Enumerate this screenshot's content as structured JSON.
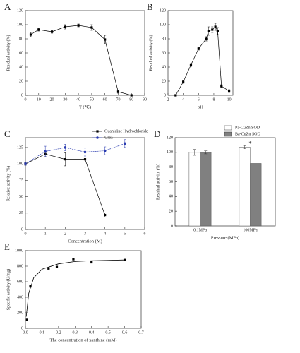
{
  "chart_data": [
    {
      "type": "line",
      "label": "A",
      "xlabel": "T (℃)",
      "ylabel": "Residual activity (%)",
      "x": [
        4,
        10,
        20,
        30,
        40,
        50,
        60,
        70,
        80
      ],
      "series": [
        {
          "color": "#000000",
          "marker": "square",
          "values": [
            86,
            93,
            90,
            97,
            99,
            96,
            79,
            5,
            0
          ],
          "errors": [
            3,
            2,
            2,
            3,
            2,
            4,
            6,
            2,
            0
          ]
        }
      ],
      "xlim": [
        0,
        90
      ],
      "xticks": [
        0,
        10,
        20,
        30,
        40,
        50,
        60,
        70,
        80,
        90
      ],
      "ylim": [
        0,
        120
      ],
      "yticks": [
        0,
        20,
        40,
        60,
        80,
        100,
        120
      ]
    },
    {
      "type": "line",
      "label": "B",
      "xlabel": "pH",
      "ylabel": "Residual activity (%)",
      "x": [
        3,
        4,
        5,
        6,
        7,
        7.3,
        7.8,
        8.2,
        8.5,
        9,
        10
      ],
      "series": [
        {
          "color": "#000000",
          "marker": "square",
          "values": [
            0,
            19,
            43,
            66,
            80,
            91,
            93,
            97,
            91,
            13,
            6
          ],
          "errors": [
            0,
            2,
            2,
            2,
            3,
            6,
            4,
            5,
            5,
            2,
            2
          ]
        }
      ],
      "xlim": [
        2,
        10.5
      ],
      "xticks": [
        2,
        4,
        6,
        8,
        10
      ],
      "ylim": [
        0,
        120
      ],
      "yticks": [
        0,
        20,
        40,
        60,
        80,
        100,
        120
      ]
    },
    {
      "type": "line",
      "label": "C",
      "xlabel": "Concentration (M)",
      "ylabel": "Relative activity (%)",
      "x": [
        0,
        1,
        2,
        3,
        4,
        5
      ],
      "series": [
        {
          "name": "Guanidine Hydrochloride",
          "color": "#000000",
          "marker": "square",
          "values": [
            100,
            115,
            107,
            107,
            22,
            null
          ],
          "errors": [
            2,
            4,
            10,
            12,
            3,
            null
          ]
        },
        {
          "name": "Urea",
          "color": "#2a3cb0",
          "marker": "circle",
          "values": [
            100,
            119,
            125,
            118,
            120,
            131
          ],
          "errors": [
            2,
            8,
            5,
            6,
            6,
            6
          ]
        }
      ],
      "legend": "upper-right",
      "xlim": [
        0,
        6
      ],
      "xticks": [
        0,
        1,
        2,
        3,
        4,
        5,
        6
      ],
      "ylim": [
        0,
        140
      ],
      "yticks": [
        0,
        25,
        50,
        75,
        100,
        125
      ]
    },
    {
      "type": "bar",
      "label": "D",
      "xlabel": "Pressure (MPa)",
      "ylabel": "Residual activity (%)",
      "categories": [
        "0.1MPa",
        "100MPa"
      ],
      "series": [
        {
          "name": "Pa-CuZn SOD",
          "color": "#ffffff",
          "values": [
            100,
            107
          ],
          "errors": [
            4,
            2
          ]
        },
        {
          "name": "Ba-CuZn SOD",
          "color": "#808080",
          "values": [
            100,
            85
          ],
          "errors": [
            2,
            5
          ]
        }
      ],
      "annotation": "*",
      "legend": "top",
      "ylim": [
        0,
        120
      ],
      "yticks": [
        0,
        20,
        40,
        60,
        80,
        100,
        120
      ]
    },
    {
      "type": "scatter",
      "label": "E",
      "xlabel": "The concentration of xanthine (mM)",
      "ylabel": "Specific activity (U/mg)",
      "x": [
        0.01,
        0.03,
        0.14,
        0.19,
        0.29,
        0.4,
        0.6
      ],
      "series": [
        {
          "color": "#000000",
          "marker": "square",
          "values": [
            110,
            540,
            770,
            790,
            890,
            850,
            880
          ]
        }
      ],
      "curve": {
        "x": [
          0.005,
          0.02,
          0.05,
          0.1,
          0.2,
          0.3,
          0.4,
          0.5,
          0.6
        ],
        "values": [
          150,
          450,
          650,
          760,
          830,
          860,
          870,
          875,
          880
        ]
      },
      "xlim": [
        0,
        0.7
      ],
      "xticks": [
        {
          "value": 0,
          "label": "0.0"
        },
        0.1,
        0.2,
        0.3,
        0.4,
        0.5,
        0.6,
        0.7
      ],
      "ylim": [
        0,
        1000
      ],
      "yticks": [
        0,
        200,
        400,
        600,
        800,
        1000
      ]
    }
  ]
}
